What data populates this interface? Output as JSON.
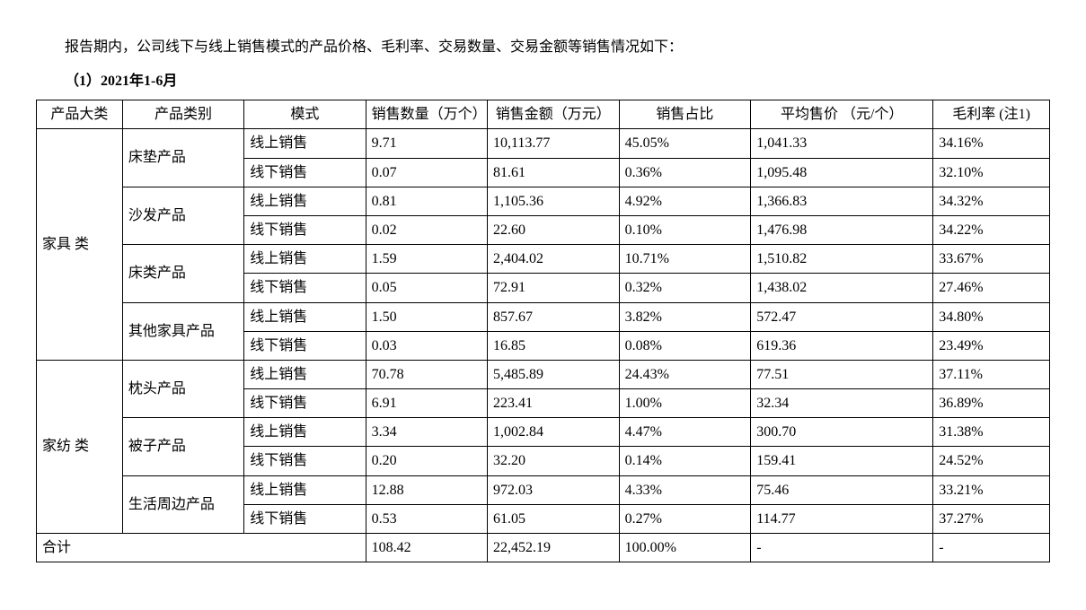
{
  "intro": "报告期内，公司线下与线上销售模式的产品价格、毛利率、交易数量、交易金额等销售情况如下：",
  "section_title": "（1）2021年1-6月",
  "headers": {
    "c1": "产品大类",
    "c2": "产品类别",
    "c3": "模式",
    "c4": "销售数量（万个）",
    "c5": "销售金额（万元）",
    "c6": "销售占比",
    "c7": "平均售价 （元/个）",
    "c8": "毛利率 (注1)"
  },
  "groups": [
    {
      "category": "家具 类",
      "products": [
        {
          "name": "床垫产品",
          "rows": [
            {
              "mode": "线上销售",
              "qty": "9.71",
              "amt": "10,113.77",
              "share": "45.05%",
              "price": "1,041.33",
              "margin": "34.16%"
            },
            {
              "mode": "线下销售",
              "qty": "0.07",
              "amt": "81.61",
              "share": "0.36%",
              "price": "1,095.48",
              "margin": "32.10%"
            }
          ]
        },
        {
          "name": "沙发产品",
          "rows": [
            {
              "mode": "线上销售",
              "qty": "0.81",
              "amt": "1,105.36",
              "share": "4.92%",
              "price": "1,366.83",
              "margin": "34.32%"
            },
            {
              "mode": "线下销售",
              "qty": "0.02",
              "amt": "22.60",
              "share": "0.10%",
              "price": "1,476.98",
              "margin": "34.22%"
            }
          ]
        },
        {
          "name": "床类产品",
          "rows": [
            {
              "mode": "线上销售",
              "qty": "1.59",
              "amt": "2,404.02",
              "share": "10.71%",
              "price": "1,510.82",
              "margin": "33.67%"
            },
            {
              "mode": "线下销售",
              "qty": "0.05",
              "amt": "72.91",
              "share": "0.32%",
              "price": "1,438.02",
              "margin": "27.46%"
            }
          ]
        },
        {
          "name": "其他家具产品",
          "rows": [
            {
              "mode": "线上销售",
              "qty": "1.50",
              "amt": "857.67",
              "share": "3.82%",
              "price": "572.47",
              "margin": "34.80%"
            },
            {
              "mode": "线下销售",
              "qty": "0.03",
              "amt": "16.85",
              "share": "0.08%",
              "price": "619.36",
              "margin": "23.49%"
            }
          ]
        }
      ]
    },
    {
      "category": "家纺 类",
      "products": [
        {
          "name": "枕头产品",
          "rows": [
            {
              "mode": "线上销售",
              "qty": "70.78",
              "amt": "5,485.89",
              "share": "24.43%",
              "price": "77.51",
              "margin": "37.11%"
            },
            {
              "mode": "线下销售",
              "qty": "6.91",
              "amt": "223.41",
              "share": "1.00%",
              "price": "32.34",
              "margin": "36.89%"
            }
          ]
        },
        {
          "name": "被子产品",
          "rows": [
            {
              "mode": "线上销售",
              "qty": "3.34",
              "amt": "1,002.84",
              "share": "4.47%",
              "price": "300.70",
              "margin": "31.38%"
            },
            {
              "mode": "线下销售",
              "qty": "0.20",
              "amt": "32.20",
              "share": "0.14%",
              "price": "159.41",
              "margin": "24.52%"
            }
          ]
        },
        {
          "name": "生活周边产品",
          "rows": [
            {
              "mode": "线上销售",
              "qty": "12.88",
              "amt": "972.03",
              "share": "4.33%",
              "price": "75.46",
              "margin": "33.21%"
            },
            {
              "mode": "线下销售",
              "qty": "0.53",
              "amt": "61.05",
              "share": "0.27%",
              "price": "114.77",
              "margin": "37.27%"
            }
          ]
        }
      ]
    }
  ],
  "total": {
    "label": "合计",
    "qty": "108.42",
    "amt": "22,452.19",
    "share": "100.00%",
    "price": "-",
    "margin": "-"
  }
}
